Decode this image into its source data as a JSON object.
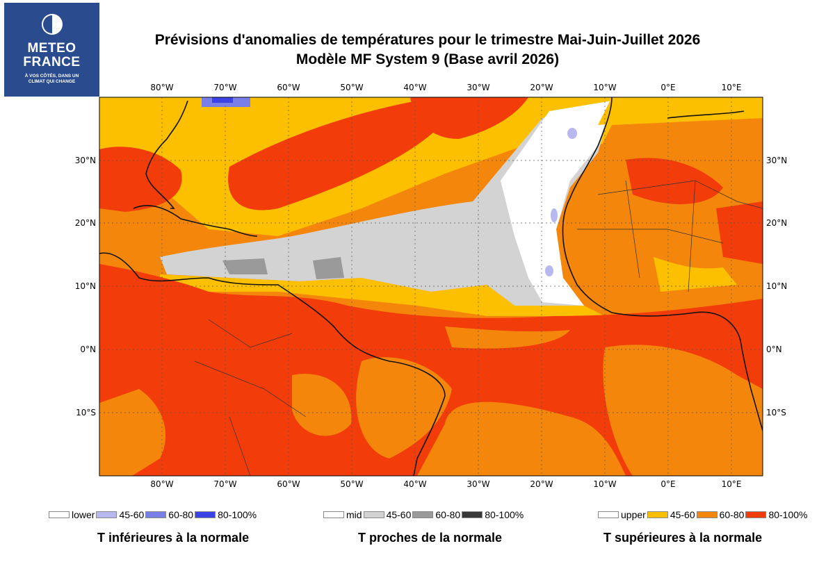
{
  "logo": {
    "line1": "METEO",
    "line2": "FRANCE",
    "tagline1": "À VOS CÔTÉS, DANS UN",
    "tagline2": "CLIMAT QUI CHANGE"
  },
  "title": {
    "line1": "Prévisions d'anomalies de températures pour le trimestre Mai-Juin-Juillet 2026",
    "line2": "Modèle MF System 9 (Base avril 2026)"
  },
  "map": {
    "lon_labels": [
      "80°W",
      "70°W",
      "60°W",
      "50°W",
      "40°W",
      "30°W",
      "20°W",
      "10°W",
      "0°E",
      "10°E"
    ],
    "lat_labels": [
      "30°N",
      "20°N",
      "10°N",
      "0°N",
      "10°S"
    ],
    "colors": {
      "ocean_base": "#f08a1e",
      "upper_45_60": "#fcc000",
      "upper_60_80": "#f4860c",
      "upper_80_100": "#f23c0a",
      "mid": "#ffffff",
      "mid_45_60": "#d3d3d3",
      "mid_60_80": "#9a9a9a",
      "mid_80_100": "#383838",
      "lower": "#ffffff",
      "lower_45_60": "#b7b8ee",
      "lower_60_80": "#7a7fe8",
      "lower_80_100": "#3b42e6"
    }
  },
  "legend": {
    "lower_group": {
      "items": [
        {
          "label": "lower",
          "color": "#ffffff"
        },
        {
          "label": "45-60",
          "color": "#b7b8ee"
        },
        {
          "label": "60-80",
          "color": "#7a7fe8"
        },
        {
          "label": "80-100%",
          "color": "#3b42e6"
        }
      ],
      "caption": "T inférieures à la normale"
    },
    "mid_group": {
      "items": [
        {
          "label": "mid",
          "color": "#ffffff"
        },
        {
          "label": "45-60",
          "color": "#d3d3d3"
        },
        {
          "label": "60-80",
          "color": "#9a9a9a"
        },
        {
          "label": "80-100%",
          "color": "#383838"
        }
      ],
      "caption": "T proches de la normale"
    },
    "upper_group": {
      "items": [
        {
          "label": "upper",
          "color": "#ffffff"
        },
        {
          "label": "45-60",
          "color": "#fcc000"
        },
        {
          "label": "60-80",
          "color": "#f4860c"
        },
        {
          "label": "80-100%",
          "color": "#f23c0a"
        }
      ],
      "caption": "T supérieures à la normale"
    }
  }
}
